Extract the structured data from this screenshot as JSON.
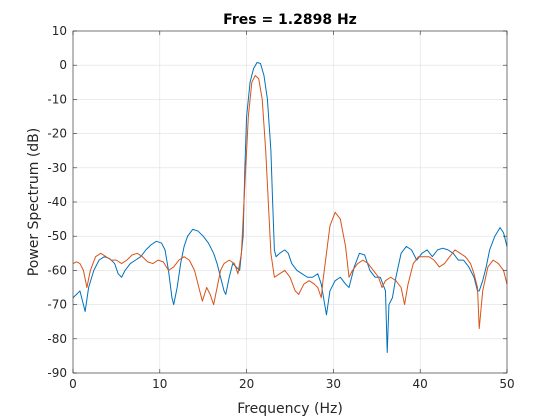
{
  "chart_data": {
    "type": "line",
    "title": "Fres = 1.2898 Hz",
    "xlabel": "Frequency (Hz)",
    "ylabel": "Power Spectrum (dB)",
    "xlim": [
      0,
      50
    ],
    "ylim": [
      -90,
      10
    ],
    "xticks": [
      0,
      10,
      20,
      30,
      40,
      50
    ],
    "yticks": [
      -90,
      -80,
      -70,
      -60,
      -50,
      -40,
      -30,
      -20,
      -10,
      0,
      10
    ],
    "grid": true,
    "legend": false,
    "series": [
      {
        "color": "#0072bd",
        "points": [
          [
            0,
            -68
          ],
          [
            0.4,
            -67
          ],
          [
            0.8,
            -66
          ],
          [
            1.2,
            -70
          ],
          [
            1.4,
            -72
          ],
          [
            1.8,
            -65
          ],
          [
            2.4,
            -60
          ],
          [
            3.0,
            -57
          ],
          [
            3.6,
            -56
          ],
          [
            4.2,
            -56.5
          ],
          [
            4.8,
            -58
          ],
          [
            5.2,
            -61
          ],
          [
            5.6,
            -62
          ],
          [
            6.0,
            -60
          ],
          [
            6.6,
            -58
          ],
          [
            7.2,
            -57
          ],
          [
            7.8,
            -56
          ],
          [
            8.4,
            -54
          ],
          [
            9.0,
            -52.5
          ],
          [
            9.6,
            -51.5
          ],
          [
            10.2,
            -52
          ],
          [
            10.6,
            -54
          ],
          [
            11.0,
            -60
          ],
          [
            11.4,
            -68
          ],
          [
            11.6,
            -70
          ],
          [
            12.0,
            -65
          ],
          [
            12.4,
            -58
          ],
          [
            12.8,
            -53
          ],
          [
            13.2,
            -50
          ],
          [
            13.8,
            -48
          ],
          [
            14.4,
            -48.5
          ],
          [
            15.0,
            -50
          ],
          [
            15.6,
            -52
          ],
          [
            16.2,
            -55
          ],
          [
            16.6,
            -58
          ],
          [
            17.0,
            -62
          ],
          [
            17.4,
            -66
          ],
          [
            17.6,
            -67
          ],
          [
            18.0,
            -62
          ],
          [
            18.4,
            -58
          ],
          [
            18.8,
            -59
          ],
          [
            19.2,
            -60
          ],
          [
            19.6,
            -50
          ],
          [
            19.8,
            -30
          ],
          [
            20.0,
            -15
          ],
          [
            20.4,
            -5
          ],
          [
            20.8,
            -1
          ],
          [
            21.2,
            0.8
          ],
          [
            21.6,
            0.5
          ],
          [
            22.0,
            -3
          ],
          [
            22.4,
            -10
          ],
          [
            22.8,
            -25
          ],
          [
            23.0,
            -40
          ],
          [
            23.2,
            -54
          ],
          [
            23.4,
            -56
          ],
          [
            23.8,
            -55
          ],
          [
            24.4,
            -54
          ],
          [
            24.8,
            -55
          ],
          [
            25.2,
            -58
          ],
          [
            25.8,
            -60
          ],
          [
            26.4,
            -61
          ],
          [
            27.0,
            -62
          ],
          [
            27.6,
            -62
          ],
          [
            28.2,
            -61
          ],
          [
            28.6,
            -64
          ],
          [
            29.0,
            -70
          ],
          [
            29.2,
            -73
          ],
          [
            29.6,
            -66
          ],
          [
            30.2,
            -63
          ],
          [
            30.8,
            -62
          ],
          [
            31.4,
            -64
          ],
          [
            31.8,
            -65
          ],
          [
            32.4,
            -59
          ],
          [
            33.0,
            -55
          ],
          [
            33.6,
            -55.5
          ],
          [
            34.2,
            -60
          ],
          [
            34.8,
            -62
          ],
          [
            35.4,
            -62
          ],
          [
            36.0,
            -66
          ],
          [
            36.2,
            -84
          ],
          [
            36.4,
            -70
          ],
          [
            36.8,
            -68
          ],
          [
            37.2,
            -62
          ],
          [
            37.8,
            -55
          ],
          [
            38.4,
            -53
          ],
          [
            39.0,
            -54
          ],
          [
            39.6,
            -57
          ],
          [
            40.2,
            -55
          ],
          [
            40.8,
            -54
          ],
          [
            41.4,
            -56
          ],
          [
            42.0,
            -54
          ],
          [
            42.6,
            -53.5
          ],
          [
            43.2,
            -54
          ],
          [
            43.8,
            -55
          ],
          [
            44.4,
            -57
          ],
          [
            45.0,
            -57
          ],
          [
            45.6,
            -59
          ],
          [
            46.2,
            -62
          ],
          [
            46.6,
            -66
          ],
          [
            46.8,
            -66
          ],
          [
            47.2,
            -63
          ],
          [
            47.6,
            -59
          ],
          [
            48.0,
            -54
          ],
          [
            48.6,
            -50
          ],
          [
            49.2,
            -47.5
          ],
          [
            49.6,
            -49
          ],
          [
            50.0,
            -53
          ]
        ]
      },
      {
        "color": "#d95319",
        "points": [
          [
            0,
            -58
          ],
          [
            0.4,
            -57.5
          ],
          [
            0.8,
            -58
          ],
          [
            1.2,
            -60
          ],
          [
            1.6,
            -65
          ],
          [
            2.0,
            -60
          ],
          [
            2.6,
            -56
          ],
          [
            3.2,
            -55
          ],
          [
            3.8,
            -56
          ],
          [
            4.4,
            -57
          ],
          [
            5.0,
            -57
          ],
          [
            5.6,
            -58
          ],
          [
            6.2,
            -57
          ],
          [
            6.8,
            -55.5
          ],
          [
            7.4,
            -55
          ],
          [
            8.0,
            -56
          ],
          [
            8.6,
            -57.5
          ],
          [
            9.2,
            -58
          ],
          [
            9.8,
            -57
          ],
          [
            10.4,
            -57.5
          ],
          [
            11.0,
            -60
          ],
          [
            11.6,
            -59
          ],
          [
            12.2,
            -57
          ],
          [
            12.8,
            -56
          ],
          [
            13.4,
            -57
          ],
          [
            14.0,
            -60
          ],
          [
            14.6,
            -66
          ],
          [
            14.9,
            -69
          ],
          [
            15.4,
            -65
          ],
          [
            15.8,
            -67
          ],
          [
            16.2,
            -70
          ],
          [
            16.6,
            -65
          ],
          [
            17.0,
            -60
          ],
          [
            17.4,
            -58
          ],
          [
            18.0,
            -57
          ],
          [
            18.6,
            -58
          ],
          [
            19.0,
            -61
          ],
          [
            19.4,
            -55
          ],
          [
            19.8,
            -35
          ],
          [
            20.2,
            -15
          ],
          [
            20.6,
            -5
          ],
          [
            21.0,
            -3
          ],
          [
            21.4,
            -4
          ],
          [
            21.8,
            -10
          ],
          [
            22.2,
            -25
          ],
          [
            22.6,
            -45
          ],
          [
            22.8,
            -55
          ],
          [
            23.2,
            -62
          ],
          [
            23.8,
            -61
          ],
          [
            24.4,
            -60
          ],
          [
            25.0,
            -62
          ],
          [
            25.6,
            -66
          ],
          [
            26.0,
            -67
          ],
          [
            26.6,
            -64
          ],
          [
            27.2,
            -63
          ],
          [
            27.8,
            -64
          ],
          [
            28.2,
            -65
          ],
          [
            28.6,
            -68
          ],
          [
            28.8,
            -63
          ],
          [
            29.2,
            -55
          ],
          [
            29.6,
            -47
          ],
          [
            30.2,
            -43
          ],
          [
            30.8,
            -45
          ],
          [
            31.4,
            -53
          ],
          [
            31.8,
            -62
          ],
          [
            32.2,
            -60
          ],
          [
            32.8,
            -58
          ],
          [
            33.4,
            -57
          ],
          [
            34.0,
            -58
          ],
          [
            34.6,
            -60
          ],
          [
            35.2,
            -62
          ],
          [
            35.6,
            -65
          ],
          [
            36.0,
            -63
          ],
          [
            36.6,
            -62
          ],
          [
            37.2,
            -63
          ],
          [
            37.8,
            -65
          ],
          [
            38.2,
            -70
          ],
          [
            38.6,
            -64
          ],
          [
            39.2,
            -58
          ],
          [
            39.8,
            -56
          ],
          [
            40.4,
            -56
          ],
          [
            41.0,
            -56
          ],
          [
            41.6,
            -57
          ],
          [
            42.2,
            -59
          ],
          [
            42.8,
            -58
          ],
          [
            43.4,
            -56
          ],
          [
            44.0,
            -54
          ],
          [
            44.6,
            -55
          ],
          [
            45.2,
            -56
          ],
          [
            45.8,
            -58
          ],
          [
            46.2,
            -61
          ],
          [
            46.6,
            -65
          ],
          [
            46.8,
            -77
          ],
          [
            47.2,
            -66
          ],
          [
            47.8,
            -59
          ],
          [
            48.4,
            -57
          ],
          [
            49.0,
            -58
          ],
          [
            49.6,
            -60
          ],
          [
            50.0,
            -64
          ]
        ]
      }
    ]
  }
}
